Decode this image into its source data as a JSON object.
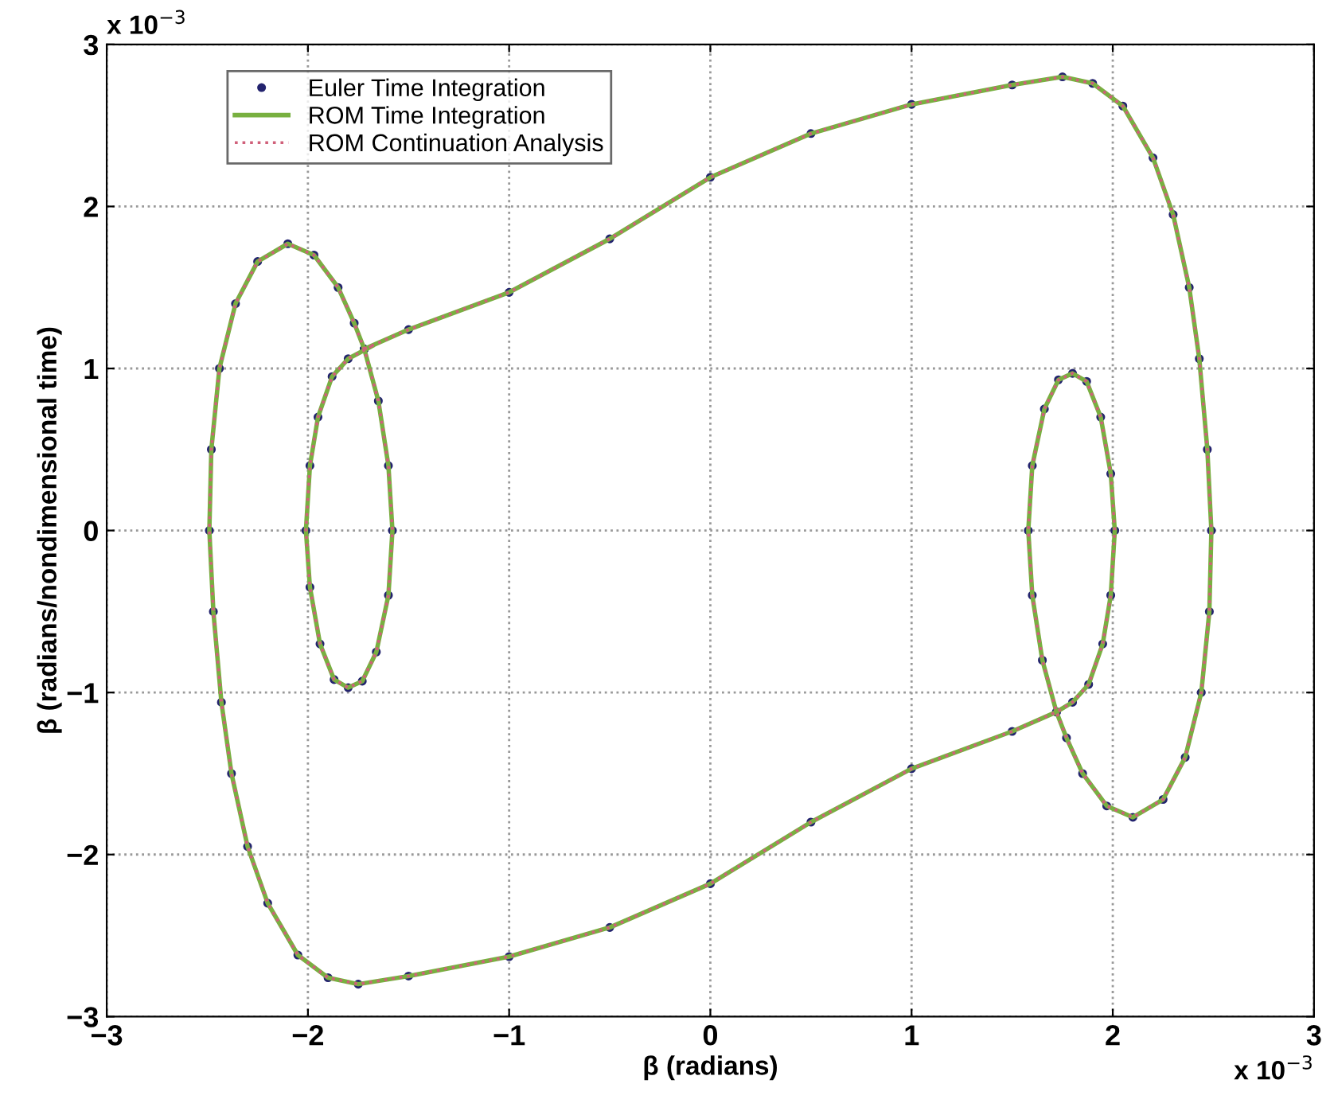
{
  "chart_data": {
    "type": "scatter",
    "xlabel": "β (radians)",
    "ylabel": "β (radians/nondimensional time)",
    "annotations": [
      "x 10$^{−3}$",
      "x 10$^{−3}$"
    ],
    "series": [
      {
        "name": "Euler Time Integration",
        "color": "#23236e",
        "marker": "circle",
        "x": [
          -1.72,
          -1.5,
          -1.0,
          -0.5,
          0,
          0.5,
          1.0,
          1.5,
          1.75,
          1.9,
          2.05,
          2.2,
          2.3,
          2.38,
          2.43,
          2.47,
          2.49,
          2.48,
          2.44,
          2.36,
          2.25,
          2.1,
          1.97,
          1.85,
          1.77,
          1.72,
          1.65,
          1.6,
          1.58,
          1.6,
          1.66,
          1.73,
          1.8,
          1.87,
          1.94,
          1.99,
          2.01,
          1.99,
          1.95,
          1.88,
          1.8,
          1.72,
          1.5,
          1.0,
          0.5,
          0,
          -0.5,
          -1.0,
          -1.5,
          -1.75,
          -1.9,
          -2.05,
          -2.2,
          -2.3,
          -2.38,
          -2.43,
          -2.47,
          -2.49,
          -2.48,
          -2.44,
          -2.36,
          -2.25,
          -2.1,
          -1.97,
          -1.85,
          -1.77,
          -1.72,
          -1.65,
          -1.6,
          -1.58,
          -1.6,
          -1.66,
          -1.73,
          -1.8,
          -1.87,
          -1.94,
          -1.99,
          -2.01,
          -1.99,
          -1.95,
          -1.88,
          -1.8,
          -1.72
        ],
        "values": [
          1.12,
          1.24,
          1.47,
          1.8,
          2.18,
          2.45,
          2.63,
          2.75,
          2.8,
          2.76,
          2.62,
          2.3,
          1.95,
          1.5,
          1.06,
          0.5,
          0,
          -0.5,
          -1.0,
          -1.4,
          -1.66,
          -1.77,
          -1.7,
          -1.5,
          -1.28,
          -1.12,
          -0.8,
          -0.4,
          0,
          0.4,
          0.75,
          0.93,
          0.97,
          0.92,
          0.7,
          0.35,
          0,
          -0.4,
          -0.7,
          -0.95,
          -1.06,
          -1.12,
          -1.24,
          -1.47,
          -1.8,
          -2.18,
          -2.45,
          -2.63,
          -2.75,
          -2.8,
          -2.76,
          -2.62,
          -2.3,
          -1.95,
          -1.5,
          -1.06,
          -0.5,
          0,
          0.5,
          1.0,
          1.4,
          1.66,
          1.77,
          1.7,
          1.5,
          1.28,
          1.12,
          0.8,
          0.4,
          0,
          -0.4,
          -0.75,
          -0.93,
          -0.97,
          -0.92,
          -0.7,
          -0.35,
          0,
          0.4,
          0.7,
          0.95,
          1.06,
          1.12
        ]
      },
      {
        "name": "ROM Time Integration",
        "type": "line",
        "color": "#78b040",
        "line_style": "solid",
        "x": [
          -1.72,
          -1.5,
          -1.0,
          -0.5,
          0,
          0.5,
          1.0,
          1.5,
          1.75,
          1.9,
          2.05,
          2.2,
          2.3,
          2.38,
          2.43,
          2.47,
          2.49,
          2.48,
          2.44,
          2.36,
          2.25,
          2.1,
          1.97,
          1.85,
          1.77,
          1.72,
          1.65,
          1.6,
          1.58,
          1.6,
          1.66,
          1.73,
          1.8,
          1.87,
          1.94,
          1.99,
          2.01,
          1.99,
          1.95,
          1.88,
          1.8,
          1.72,
          1.5,
          1.0,
          0.5,
          0,
          -0.5,
          -1.0,
          -1.5,
          -1.75,
          -1.9,
          -2.05,
          -2.2,
          -2.3,
          -2.38,
          -2.43,
          -2.47,
          -2.49,
          -2.48,
          -2.44,
          -2.36,
          -2.25,
          -2.1,
          -1.97,
          -1.85,
          -1.77,
          -1.72,
          -1.65,
          -1.6,
          -1.58,
          -1.6,
          -1.66,
          -1.73,
          -1.8,
          -1.87,
          -1.94,
          -1.99,
          -2.01,
          -1.99,
          -1.95,
          -1.88,
          -1.8,
          -1.68
        ],
        "values": [
          1.12,
          1.24,
          1.47,
          1.8,
          2.18,
          2.45,
          2.63,
          2.75,
          2.8,
          2.76,
          2.62,
          2.3,
          1.95,
          1.5,
          1.06,
          0.5,
          0,
          -0.5,
          -1.0,
          -1.4,
          -1.66,
          -1.77,
          -1.7,
          -1.5,
          -1.28,
          -1.12,
          -0.8,
          -0.4,
          0,
          0.4,
          0.75,
          0.93,
          0.97,
          0.92,
          0.7,
          0.35,
          0,
          -0.4,
          -0.7,
          -0.95,
          -1.06,
          -1.12,
          -1.24,
          -1.47,
          -1.8,
          -2.18,
          -2.45,
          -2.63,
          -2.75,
          -2.8,
          -2.76,
          -2.62,
          -2.3,
          -1.95,
          -1.5,
          -1.06,
          -0.5,
          0,
          0.5,
          1.0,
          1.4,
          1.66,
          1.77,
          1.7,
          1.5,
          1.28,
          1.12,
          0.8,
          0.4,
          0,
          -0.4,
          -0.75,
          -0.93,
          -0.97,
          -0.92,
          -0.7,
          -0.35,
          0,
          0.4,
          0.7,
          0.95,
          1.06,
          1.14
        ]
      },
      {
        "name": "ROM Continuation Analysis",
        "type": "line",
        "color": "#d0607a",
        "line_style": "dotted",
        "x": [
          -1.72,
          -1.5,
          -1.0,
          -0.5,
          0,
          0.5,
          1.0,
          1.5,
          1.75,
          1.9,
          2.05,
          2.2,
          2.3,
          2.38,
          2.43,
          2.47,
          2.49,
          2.48,
          2.44,
          2.36,
          2.25,
          2.1,
          1.97,
          1.85,
          1.77,
          1.72,
          1.65,
          1.6,
          1.58,
          1.6,
          1.66,
          1.73,
          1.8,
          1.87,
          1.94,
          1.99,
          2.01,
          1.99,
          1.95,
          1.88,
          1.8,
          1.72,
          1.5,
          1.0,
          0.5,
          0,
          -0.5,
          -1.0,
          -1.5,
          -1.75,
          -1.9,
          -2.05,
          -2.2,
          -2.3,
          -2.38,
          -2.43,
          -2.47,
          -2.49,
          -2.48,
          -2.44,
          -2.36,
          -2.25,
          -2.1,
          -1.97,
          -1.85,
          -1.77,
          -1.72,
          -1.65,
          -1.6,
          -1.58,
          -1.6,
          -1.66,
          -1.73,
          -1.8,
          -1.87,
          -1.94,
          -1.99,
          -2.01,
          -1.99,
          -1.95,
          -1.88,
          -1.8,
          -1.68
        ],
        "values": [
          1.12,
          1.24,
          1.47,
          1.8,
          2.18,
          2.45,
          2.63,
          2.75,
          2.8,
          2.76,
          2.62,
          2.3,
          1.95,
          1.5,
          1.06,
          0.5,
          0,
          -0.5,
          -1.0,
          -1.4,
          -1.66,
          -1.77,
          -1.7,
          -1.5,
          -1.28,
          -1.12,
          -0.8,
          -0.4,
          0,
          0.4,
          0.75,
          0.93,
          0.97,
          0.92,
          0.7,
          0.35,
          0,
          -0.4,
          -0.7,
          -0.95,
          -1.06,
          -1.12,
          -1.24,
          -1.47,
          -1.8,
          -2.18,
          -2.45,
          -2.63,
          -2.75,
          -2.8,
          -2.76,
          -2.62,
          -2.3,
          -1.95,
          -1.5,
          -1.06,
          -0.5,
          0,
          0.5,
          1.0,
          1.4,
          1.66,
          1.77,
          1.7,
          1.5,
          1.28,
          1.12,
          0.8,
          0.4,
          0,
          -0.4,
          -0.75,
          -0.93,
          -0.97,
          -0.92,
          -0.7,
          -0.35,
          0,
          0.4,
          0.7,
          0.95,
          1.06,
          1.14
        ]
      }
    ],
    "xlim": [
      -3,
      3
    ],
    "ylim": [
      -3,
      3
    ],
    "xticks": [
      -3,
      -2,
      -1,
      0,
      1,
      2,
      3
    ],
    "yticks": [
      -3,
      -2,
      -1,
      0,
      1,
      2,
      3
    ],
    "grid": true,
    "legend": "top left"
  }
}
